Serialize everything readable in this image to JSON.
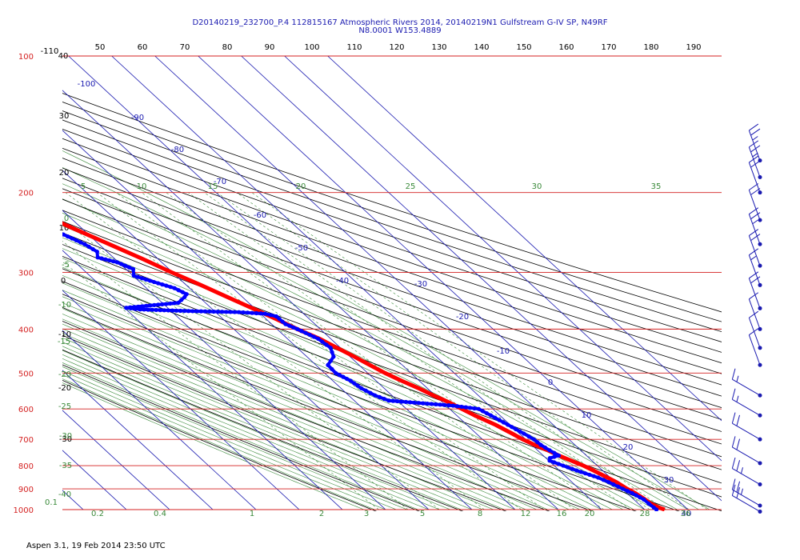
{
  "header": {
    "title_line1": "D20140219_232700_P.4 112815167 Atmospheric Rivers 2014, 20140219N1 Gulfstream G-IV SP, N49RF",
    "title_line2": "N8.0001 W153.4889"
  },
  "footer": {
    "text": "Aspen 3.1, 19 Feb 2014  23:50 UTC"
  },
  "colors": {
    "isobar": "#d42020",
    "isotherm": "#1a1ab0",
    "dry_adiabat": "#000000",
    "moist_adiabat": "#3a8a3a",
    "mixing_ratio": "#3a8a3a",
    "temperature": "#ff0000",
    "dewpoint": "#0000ff",
    "wind": "#1a1ab0"
  },
  "chart_data": {
    "type": "line",
    "title": "D20140219_232700_P.4 112815167 Atmospheric Rivers 2014, 20140219N1 Gulfstream G-IV SP, N49RF",
    "pressure_axis": {
      "scale": "log",
      "range": [
        1000,
        100
      ],
      "tick_labels": [
        "100",
        "200",
        "300",
        "400",
        "500",
        "600",
        "700",
        "800",
        "900",
        "1000"
      ]
    },
    "top_temperature_labels": [
      "-110",
      "50",
      "60",
      "70",
      "80",
      "90",
      "100",
      "110",
      "120",
      "130",
      "140",
      "150",
      "160",
      "170",
      "180",
      "190"
    ],
    "isotherm_labels": [
      "-100",
      "-90",
      "-80",
      "-70",
      "-60",
      "-50",
      "-40",
      "-30",
      "-20",
      "-10",
      "0",
      "10",
      "20",
      "30",
      "40"
    ],
    "left_side_labels": [
      "40",
      "30",
      "20",
      "10",
      "0",
      "-10",
      "-20",
      "-30"
    ],
    "moist_labels_left": [
      "5",
      "0",
      "-5",
      "-10",
      "-15",
      "-20",
      "-25",
      "-30",
      "-35",
      "-40"
    ],
    "moist_labels_top": [
      "10",
      "15",
      "20",
      "25",
      "30",
      "35"
    ],
    "mixing_ratio_labels": [
      "0.1",
      "0.2",
      "0.4",
      "1",
      "2",
      "3",
      "5",
      "8",
      "12",
      "16",
      "20",
      "28",
      "36"
    ],
    "series": [
      {
        "name": "Temperature",
        "color": "#ff0000",
        "points": [
          [
            1000,
            24.6
          ],
          [
            990,
            23.8
          ],
          [
            970,
            22.9
          ],
          [
            950,
            22.6
          ],
          [
            920,
            21.9
          ],
          [
            900,
            21.1
          ],
          [
            870,
            20.3
          ],
          [
            850,
            19.4
          ],
          [
            820,
            17.9
          ],
          [
            800,
            16.8
          ],
          [
            780,
            15.2
          ],
          [
            760,
            13.6
          ],
          [
            740,
            12.4
          ],
          [
            720,
            10.7
          ],
          [
            700,
            9.3
          ],
          [
            680,
            8.3
          ],
          [
            650,
            6.6
          ],
          [
            620,
            4.2
          ],
          [
            600,
            2.8
          ],
          [
            580,
            1.5
          ],
          [
            560,
            -0.4
          ],
          [
            540,
            -2.0
          ],
          [
            520,
            -4.1
          ],
          [
            500,
            -6.0
          ],
          [
            480,
            -7.5
          ],
          [
            460,
            -9.0
          ],
          [
            440,
            -10.8
          ],
          [
            420,
            -12.6
          ],
          [
            400,
            -15.3
          ],
          [
            380,
            -17.7
          ],
          [
            360,
            -20.5
          ],
          [
            340,
            -23.5
          ],
          [
            320,
            -26.6
          ],
          [
            300,
            -30.2
          ],
          [
            280,
            -33.6
          ],
          [
            260,
            -37.6
          ],
          [
            240,
            -42.0
          ],
          [
            220,
            -46.5
          ],
          [
            200,
            -51.5
          ],
          [
            190,
            -54.0
          ],
          [
            180,
            -56.0
          ],
          [
            170,
            -58.6
          ]
        ]
      },
      {
        "name": "Dewpoint",
        "color": "#0000ff",
        "points": [
          [
            1000,
            22.7
          ],
          [
            990,
            22.6
          ],
          [
            970,
            22.4
          ],
          [
            950,
            22.3
          ],
          [
            920,
            21.2
          ],
          [
            900,
            20.1
          ],
          [
            870,
            18.5
          ],
          [
            850,
            17.2
          ],
          [
            820,
            14.0
          ],
          [
            800,
            12.1
          ],
          [
            780,
            10.2
          ],
          [
            770,
            10.9
          ],
          [
            760,
            13.6
          ],
          [
            740,
            12.8
          ],
          [
            720,
            12.1
          ],
          [
            700,
            11.9
          ],
          [
            680,
            11.0
          ],
          [
            650,
            9.5
          ],
          [
            620,
            7.9
          ],
          [
            600,
            6.7
          ],
          [
            590,
            1.6
          ],
          [
            580,
            -7.5
          ],
          [
            575,
            -12.0
          ],
          [
            560,
            -13.9
          ],
          [
            540,
            -15.3
          ],
          [
            520,
            -15.9
          ],
          [
            500,
            -17.4
          ],
          [
            480,
            -17.2
          ],
          [
            460,
            -13.8
          ],
          [
            440,
            -12.3
          ],
          [
            420,
            -12.9
          ],
          [
            400,
            -15.3
          ],
          [
            390,
            -16.8
          ],
          [
            375,
            -17.0
          ],
          [
            370,
            -18.9
          ],
          [
            367,
            -24.6
          ],
          [
            365,
            -36.0
          ],
          [
            362,
            -46.8
          ],
          [
            359,
            -49.6
          ],
          [
            350,
            -36.3
          ],
          [
            340,
            -33.4
          ],
          [
            335,
            -32.2
          ],
          [
            325,
            -33.5
          ],
          [
            315,
            -36.7
          ],
          [
            305,
            -39.8
          ],
          [
            295,
            -38.3
          ],
          [
            285,
            -40.3
          ],
          [
            278,
            -43.6
          ],
          [
            270,
            -42.3
          ],
          [
            260,
            -43.3
          ],
          [
            250,
            -45.3
          ],
          [
            240,
            -47.3
          ],
          [
            234,
            -50.4
          ],
          [
            228,
            -61.4
          ],
          [
            222,
            -69.1
          ],
          [
            218,
            -73.6
          ],
          [
            215,
            -80.1
          ],
          [
            210,
            -84.3
          ],
          [
            205,
            -84.7
          ],
          [
            199,
            -84.9
          ]
        ]
      }
    ],
    "wind_barbs": [
      {
        "pressure": 170,
        "speed_kt": 25
      },
      {
        "pressure": 185,
        "speed_kt": 25
      },
      {
        "pressure": 200,
        "speed_kt": 20
      },
      {
        "pressure": 230,
        "speed_kt": 20
      },
      {
        "pressure": 260,
        "speed_kt": 25
      },
      {
        "pressure": 290,
        "speed_kt": 20
      },
      {
        "pressure": 320,
        "speed_kt": 15
      },
      {
        "pressure": 360,
        "speed_kt": 20
      },
      {
        "pressure": 400,
        "speed_kt": 10
      },
      {
        "pressure": 440,
        "speed_kt": 10
      },
      {
        "pressure": 480,
        "speed_kt": 10
      },
      {
        "pressure": 560,
        "speed_kt": 15
      },
      {
        "pressure": 620,
        "speed_kt": 15
      },
      {
        "pressure": 700,
        "speed_kt": 20
      },
      {
        "pressure": 790,
        "speed_kt": 20
      },
      {
        "pressure": 880,
        "speed_kt": 25
      },
      {
        "pressure": 980,
        "speed_kt": 25
      },
      {
        "pressure": 1010,
        "speed_kt": 20
      }
    ]
  }
}
